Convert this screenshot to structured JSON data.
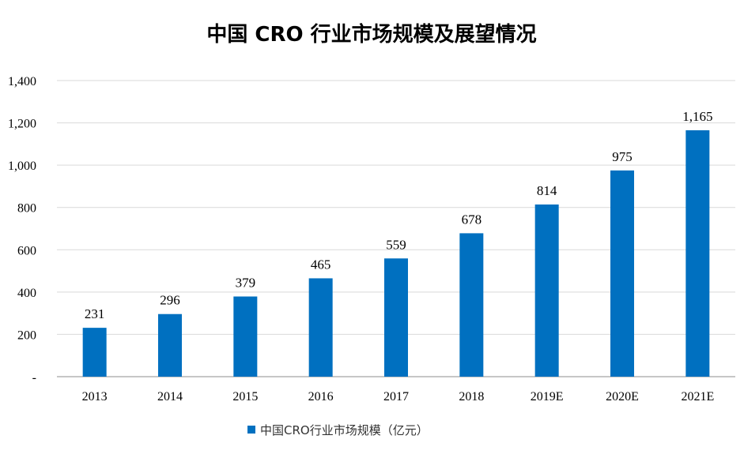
{
  "chart_data": {
    "type": "bar",
    "title": "中国 CRO 行业市场规模及展望情况",
    "categories": [
      "2013",
      "2014",
      "2015",
      "2016",
      "2017",
      "2018",
      "2019E",
      "2020E",
      "2021E"
    ],
    "series": [
      {
        "name": "中国CRO行业市场规模（亿元）",
        "values": [
          231,
          296,
          379,
          465,
          559,
          678,
          814,
          975,
          1165
        ],
        "color": "#0070C0"
      }
    ],
    "ylim": [
      0,
      1400
    ],
    "yticks": [
      0,
      200,
      400,
      600,
      800,
      1000,
      1200,
      1400
    ],
    "ytick_labels": [
      "-",
      "200",
      "400",
      "600",
      "800",
      "1,000",
      "1,200",
      "1,400"
    ],
    "data_labels": [
      "231",
      "296",
      "379",
      "465",
      "559",
      "678",
      "814",
      "975",
      "1,165"
    ],
    "grid": true,
    "legend_position": "bottom"
  }
}
